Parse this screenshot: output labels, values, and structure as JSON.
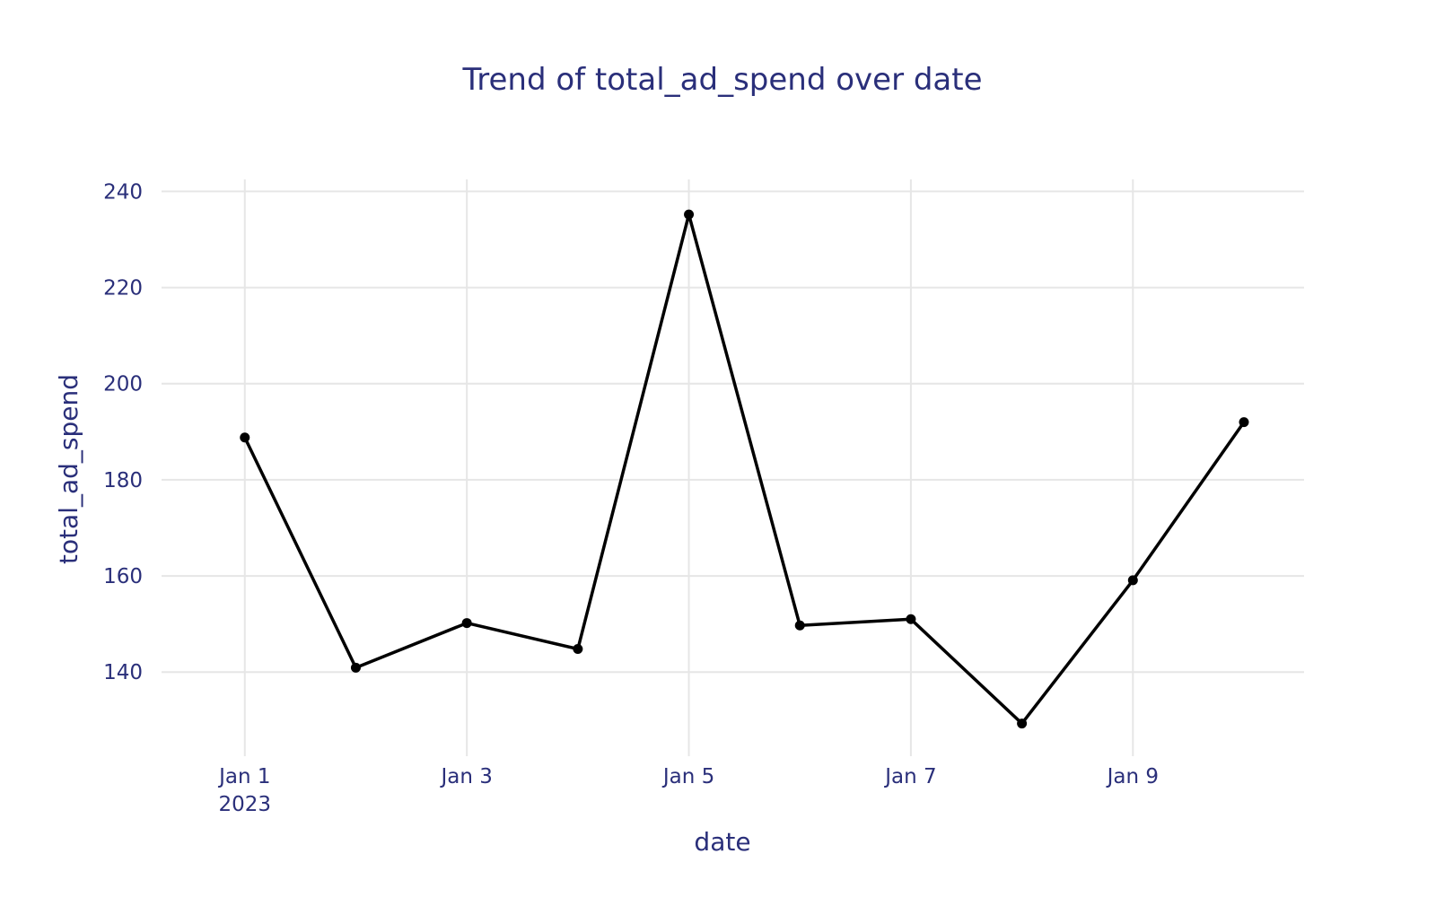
{
  "chart_data": {
    "type": "line",
    "title": "Trend of total_ad_spend over date",
    "xlabel": "date",
    "ylabel": "total_ad_spend",
    "x": [
      "2023-01-01",
      "2023-01-02",
      "2023-01-03",
      "2023-01-04",
      "2023-01-05",
      "2023-01-06",
      "2023-01-07",
      "2023-01-08",
      "2023-01-09",
      "2023-01-10"
    ],
    "series": [
      {
        "values": [
          188.8,
          140.9,
          150.2,
          144.8,
          235.2,
          149.7,
          151.0,
          129.3,
          159.1,
          192.0
        ]
      }
    ],
    "ylim": [
      122.5,
      242.5
    ],
    "xlim": [
      "2022-12-31 06:00",
      "2023-01-10 13:00"
    ],
    "x_ticks": [
      {
        "value": "2023-01-01",
        "label": "Jan 1",
        "sublabel": "2023"
      },
      {
        "value": "2023-01-03",
        "label": "Jan 3",
        "sublabel": ""
      },
      {
        "value": "2023-01-05",
        "label": "Jan 5",
        "sublabel": ""
      },
      {
        "value": "2023-01-07",
        "label": "Jan 7",
        "sublabel": ""
      },
      {
        "value": "2023-01-09",
        "label": "Jan 9",
        "sublabel": ""
      }
    ],
    "y_ticks": [
      140,
      160,
      180,
      200,
      220,
      240
    ],
    "grid": true,
    "legend": "none",
    "colors": {
      "line": "#000000",
      "marker": "#000000",
      "text": "#2a2f7a",
      "grid": "#e6e6e6",
      "background": "#ffffff"
    }
  }
}
